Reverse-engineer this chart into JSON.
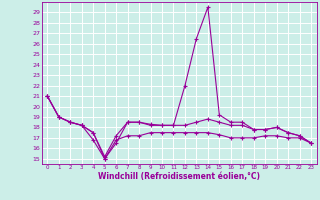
{
  "xlabel": "Windchill (Refroidissement éolien,°C)",
  "background_color": "#cceee8",
  "grid_color": "#ffffff",
  "line_color": "#990099",
  "xlim": [
    -0.5,
    23.5
  ],
  "ylim": [
    14.5,
    30.0
  ],
  "xticks": [
    0,
    1,
    2,
    3,
    4,
    5,
    6,
    7,
    8,
    9,
    10,
    11,
    12,
    13,
    14,
    15,
    16,
    17,
    18,
    19,
    20,
    21,
    22,
    23
  ],
  "yticks": [
    15,
    16,
    17,
    18,
    19,
    20,
    21,
    22,
    23,
    24,
    25,
    26,
    27,
    28,
    29
  ],
  "series": [
    {
      "x": [
        0,
        1,
        2,
        3,
        4,
        5,
        6,
        7,
        8,
        9,
        10,
        11,
        12,
        13,
        14,
        15,
        16,
        17,
        18,
        19,
        20,
        21,
        22,
        23
      ],
      "y": [
        21.0,
        19.0,
        18.5,
        18.2,
        17.5,
        15.0,
        16.5,
        18.5,
        18.5,
        18.3,
        18.2,
        18.2,
        22.0,
        26.5,
        29.5,
        19.2,
        18.5,
        18.5,
        17.8,
        17.8,
        18.0,
        17.5,
        17.2,
        16.5
      ]
    },
    {
      "x": [
        0,
        1,
        2,
        3,
        4,
        5,
        6,
        7,
        8,
        9,
        10,
        11,
        12,
        13,
        14,
        15,
        16,
        17,
        18,
        19,
        20,
        21,
        22,
        23
      ],
      "y": [
        21.0,
        19.0,
        18.5,
        18.2,
        17.5,
        15.2,
        17.2,
        18.5,
        18.5,
        18.2,
        18.2,
        18.2,
        18.2,
        18.5,
        18.8,
        18.5,
        18.2,
        18.2,
        17.8,
        17.8,
        18.0,
        17.5,
        17.2,
        16.5
      ]
    },
    {
      "x": [
        0,
        1,
        2,
        3,
        4,
        5,
        6,
        7,
        8,
        9,
        10,
        11,
        12,
        13,
        14,
        15,
        16,
        17,
        18,
        19,
        20,
        21,
        22,
        23
      ],
      "y": [
        21.0,
        19.0,
        18.5,
        18.2,
        16.8,
        15.0,
        16.8,
        17.2,
        17.2,
        17.5,
        17.5,
        17.5,
        17.5,
        17.5,
        17.5,
        17.3,
        17.0,
        17.0,
        17.0,
        17.2,
        17.2,
        17.0,
        17.0,
        16.5
      ]
    }
  ]
}
